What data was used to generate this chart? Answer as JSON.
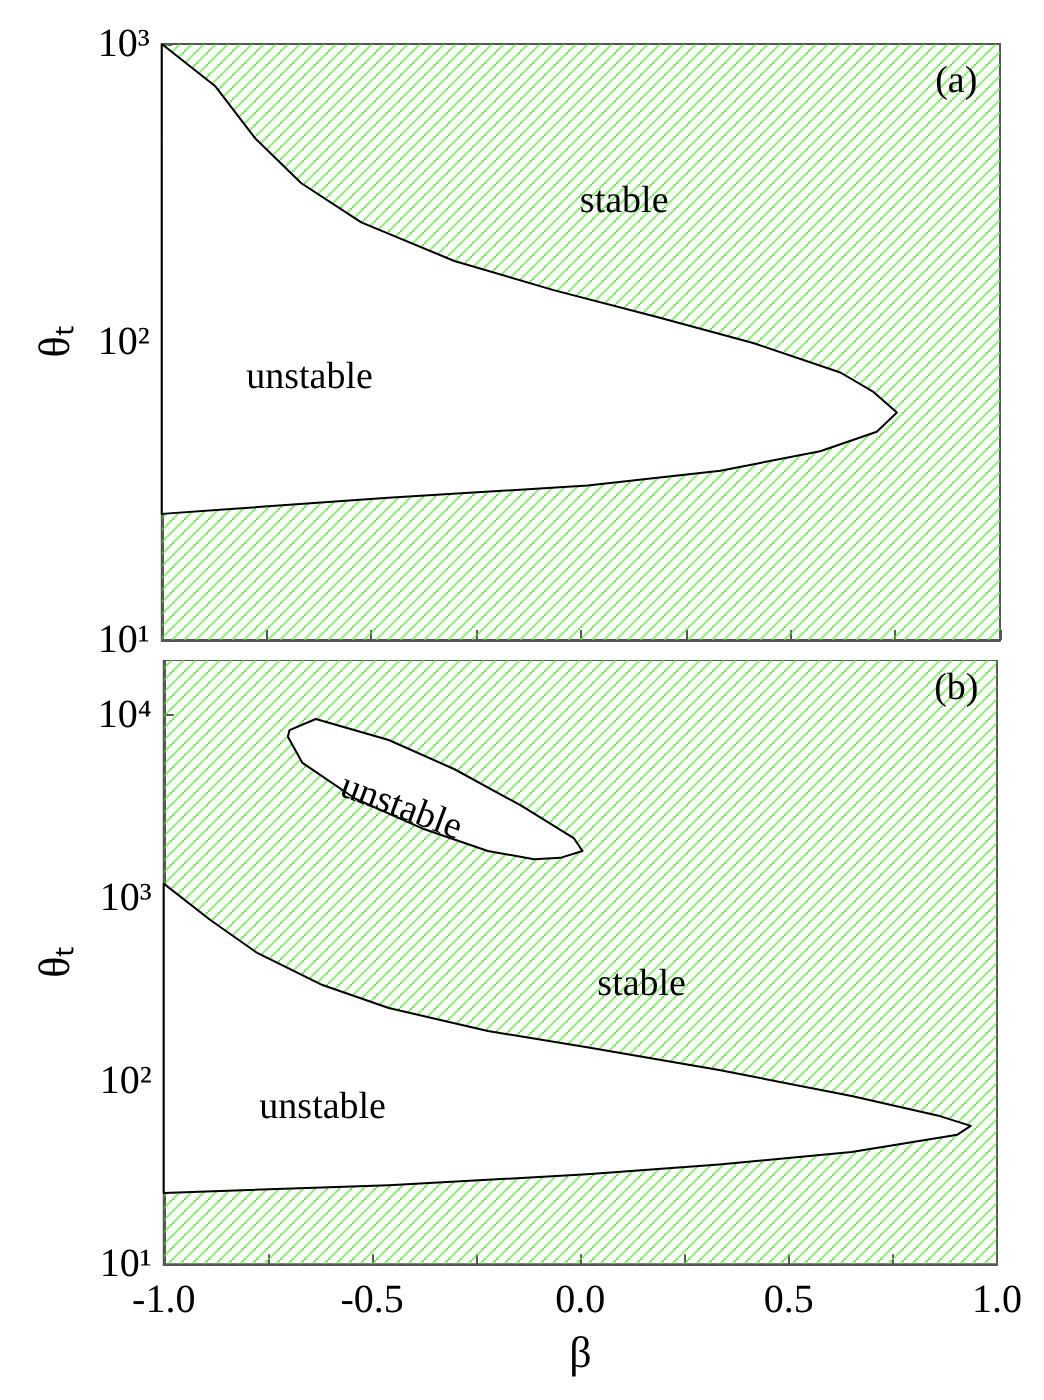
{
  "chart_data": [
    {
      "type": "area",
      "ylabel": "θₜ",
      "log": "y",
      "tick_labels": "y",
      "xlim": [
        -1,
        1
      ],
      "xticks": [
        {
          "value": -1,
          "label": null
        },
        {
          "value": -0.75,
          "label": null
        },
        {
          "value": -0.5,
          "label": null
        },
        {
          "value": -0.25,
          "label": null
        },
        {
          "value": 0,
          "label": null
        },
        {
          "value": 0.25,
          "label": null
        },
        {
          "value": 0.5,
          "label": null
        },
        {
          "value": 0.75,
          "label": null
        },
        {
          "value": 1,
          "label": null
        }
      ],
      "ylim": [
        10,
        1000
      ],
      "yticks": [
        {
          "value": 10,
          "label": "10¹"
        },
        {
          "value": 100,
          "label": "10²"
        },
        {
          "value": 1000,
          "label": "10³"
        }
      ],
      "bands": [
        {
          "axis": "x",
          "from": -1,
          "to": 1,
          "color": "#55dd33"
        }
      ],
      "series": [
        {
          "color": "#000000",
          "x": [
            -1,
            -0.873,
            -0.778,
            -0.667,
            -0.524,
            -0.302,
            -0.063,
            0.175,
            0.413,
            0.619,
            0.698,
            0.754,
            0.706,
            0.571,
            0.333,
            0.016,
            -0.46,
            -1
          ],
          "values": [
            1000,
            723,
            484,
            341,
            252,
            187,
            149,
            122,
            99,
            79,
            68,
            58,
            50,
            43,
            37,
            33,
            30,
            26.5
          ]
        }
      ],
      "annotations": [
        "(a)",
        "stable",
        "unstable"
      ]
    },
    {
      "type": "area",
      "xlabel": "β",
      "ylabel": "θₜ",
      "log": "y",
      "xlim": [
        -1,
        1
      ],
      "xticks": [
        {
          "value": -1,
          "label": "-1.0"
        },
        {
          "value": -0.75,
          "label": null
        },
        {
          "value": -0.5,
          "label": "-0.5"
        },
        {
          "value": -0.25,
          "label": null
        },
        {
          "value": 0,
          "label": "0.0"
        },
        {
          "value": 0.25,
          "label": null
        },
        {
          "value": 0.5,
          "label": "0.5"
        },
        {
          "value": 0.75,
          "label": null
        },
        {
          "value": 1,
          "label": "1.0"
        }
      ],
      "ylim": [
        10,
        20000
      ],
      "yticks": [
        {
          "value": 10,
          "label": "10¹"
        },
        {
          "value": 100,
          "label": "10²"
        },
        {
          "value": 1000,
          "label": "10³"
        },
        {
          "value": 10000,
          "label": "10⁴"
        }
      ],
      "bands": [
        {
          "axis": "x",
          "from": -1,
          "to": 1,
          "color": "#55dd33"
        }
      ],
      "series": [
        {
          "color": "#000000",
          "x": [
            -1,
            -0.889,
            -0.778,
            -0.619,
            -0.46,
            -0.222,
            0.016,
            0.333,
            0.651,
            0.857,
            0.937,
            0.905,
            0.651,
            0.333,
            0.016,
            -0.46,
            -1
          ],
          "values": [
            1200,
            762,
            506,
            335,
            251,
            188,
            153,
            115,
            83,
            65,
            57,
            51,
            41,
            35,
            31,
            27,
            24.5
          ]
        },
        {
          "color": "#000000",
          "x": [
            -0.698,
            -0.635,
            -0.46,
            -0.302,
            -0.143,
            -0.016,
            0.005,
            -0.048,
            -0.111,
            -0.222,
            -0.381,
            -0.54,
            -0.667,
            -0.702
          ],
          "values": [
            8280,
            9520,
            7310,
            5060,
            3210,
            2130,
            1810,
            1660,
            1630,
            1810,
            2410,
            3490,
            5480,
            7620
          ]
        }
      ],
      "annotations": [
        "(b)",
        "unstable",
        "stable",
        "unstable"
      ]
    }
  ]
}
